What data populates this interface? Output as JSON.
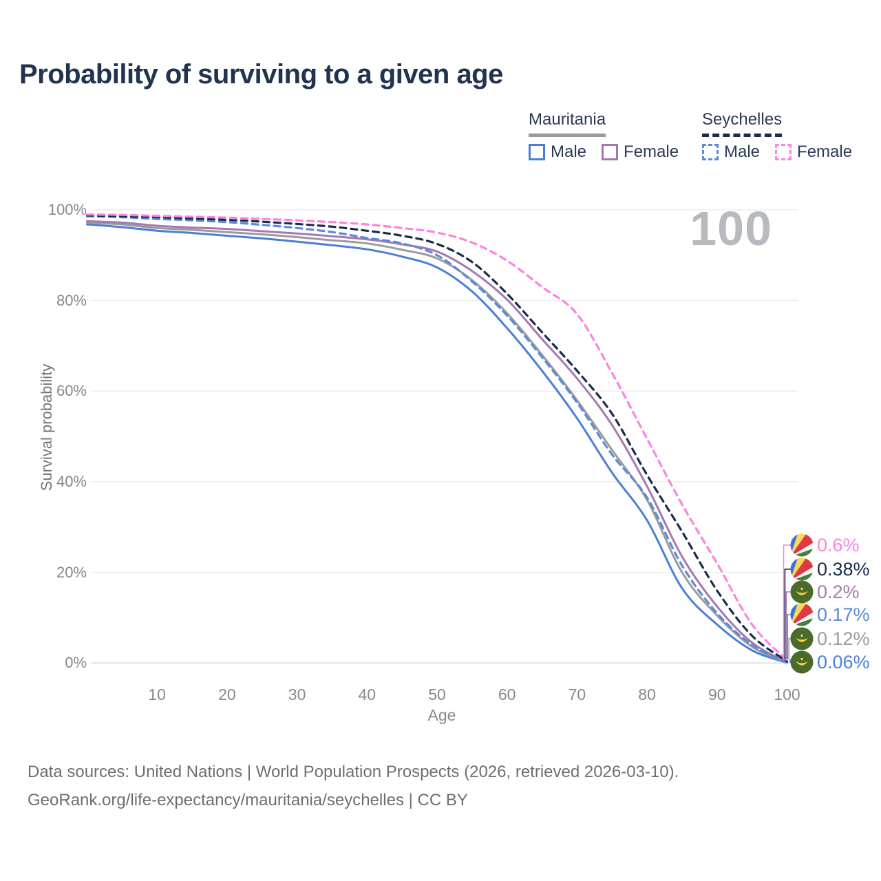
{
  "title": "Probability of surviving to a given age",
  "watermark_age": "100",
  "legend": {
    "groups": [
      {
        "country": "Mauritania",
        "line_style": "solid",
        "underline_color": "#9a9a9a",
        "items": [
          {
            "label": "Male",
            "color": "#4a7fd6"
          },
          {
            "label": "Female",
            "color": "#a678b0"
          }
        ]
      },
      {
        "country": "Seychelles",
        "line_style": "dashed",
        "underline_color": "#1b2b4d",
        "items": [
          {
            "label": "Male",
            "color": "#5b8ad9"
          },
          {
            "label": "Female",
            "color": "#ff82df"
          }
        ]
      }
    ]
  },
  "chart_data": {
    "type": "line",
    "title": "Probability of surviving to a given age",
    "xlabel": "Age",
    "ylabel": "Survival probability",
    "xlim": [
      0,
      100
    ],
    "ylim": [
      0,
      100
    ],
    "grid": "horizontal",
    "x_ticks": [
      10,
      20,
      30,
      40,
      50,
      60,
      70,
      80,
      90,
      100
    ],
    "y_ticks": [
      {
        "label": "100%",
        "value": 100
      },
      {
        "label": "80%",
        "value": 80
      },
      {
        "label": "60%",
        "value": 60
      },
      {
        "label": "40%",
        "value": 40
      },
      {
        "label": "20%",
        "value": 20
      },
      {
        "label": "0%",
        "value": 0
      }
    ],
    "x": [
      0,
      5,
      10,
      15,
      20,
      25,
      30,
      35,
      40,
      45,
      50,
      55,
      60,
      65,
      70,
      75,
      80,
      85,
      90,
      95,
      100
    ],
    "series": [
      {
        "id": "mauritania-male",
        "country": "Mauritania",
        "sex": "Male",
        "color": "#4a7fd6",
        "dashed": false,
        "flag": "mauritania",
        "end_label": "0.06%",
        "values": [
          96.8,
          96.2,
          95.4,
          94.9,
          94.3,
          93.7,
          93.0,
          92.2,
          91.3,
          89.7,
          87.3,
          82.0,
          73.9,
          64.5,
          54.0,
          42.0,
          31.5,
          16.5,
          8.5,
          2.8,
          0.06
        ]
      },
      {
        "id": "mauritania-both",
        "country": "Mauritania",
        "sex": "Both sexes",
        "color": "#9b9b9f",
        "dashed": false,
        "flag": "mauritania",
        "end_label": "0.12%",
        "values": [
          97.2,
          96.8,
          96.0,
          95.6,
          95.1,
          94.6,
          94.0,
          93.3,
          92.6,
          91.2,
          89.3,
          84.5,
          77.2,
          68.0,
          58.0,
          47.0,
          36.0,
          20.0,
          10.5,
          3.6,
          0.12
        ]
      },
      {
        "id": "mauritania-female",
        "country": "Mauritania",
        "sex": "Female",
        "color": "#a678b0",
        "dashed": false,
        "flag": "mauritania",
        "end_label": "0.2%",
        "values": [
          97.5,
          97.2,
          96.5,
          96.1,
          95.8,
          95.3,
          94.8,
          94.2,
          93.5,
          92.4,
          90.8,
          86.5,
          80.2,
          71.5,
          62.8,
          52.5,
          39.0,
          23.5,
          12.5,
          4.5,
          0.2
        ]
      },
      {
        "id": "seychelles-male",
        "country": "Seychelles",
        "sex": "Male",
        "color": "#5b8ad9",
        "dashed": true,
        "flag": "seychelles",
        "end_label": "0.17%",
        "values": [
          98.6,
          98.4,
          98.0,
          97.7,
          97.3,
          96.7,
          96.0,
          95.1,
          93.8,
          92.6,
          90.0,
          84.2,
          76.7,
          67.5,
          57.5,
          46.0,
          36.5,
          21.5,
          11.0,
          4.0,
          0.17
        ]
      },
      {
        "id": "seychelles-both",
        "country": "Seychelles",
        "sex": "Both sexes",
        "color": "#1b2b4d",
        "dashed": true,
        "flag": "seychelles",
        "end_label": "0.38%",
        "values": [
          98.8,
          98.6,
          98.4,
          98.1,
          97.8,
          97.4,
          96.9,
          96.3,
          95.4,
          94.3,
          92.5,
          88.5,
          81.5,
          73.0,
          64.5,
          55.0,
          41.5,
          29.0,
          16.0,
          6.0,
          0.38
        ]
      },
      {
        "id": "seychelles-female",
        "country": "Seychelles",
        "sex": "Female",
        "color": "#ff82df",
        "dashed": true,
        "flag": "seychelles",
        "end_label": "0.6%",
        "values": [
          99.0,
          98.9,
          98.7,
          98.5,
          98.3,
          98.0,
          97.7,
          97.3,
          96.8,
          96.0,
          95.0,
          92.8,
          88.8,
          83.0,
          77.0,
          64.0,
          49.5,
          35.0,
          22.0,
          8.5,
          0.6
        ]
      }
    ],
    "legend_position": "top-right"
  },
  "footer": {
    "line1": "Data sources: United Nations | World Population Prospects (2026, retrieved 2026-03-10).",
    "line2": "GeoRank.org/life-expectancy/mauritania/seychelles | CC BY"
  }
}
